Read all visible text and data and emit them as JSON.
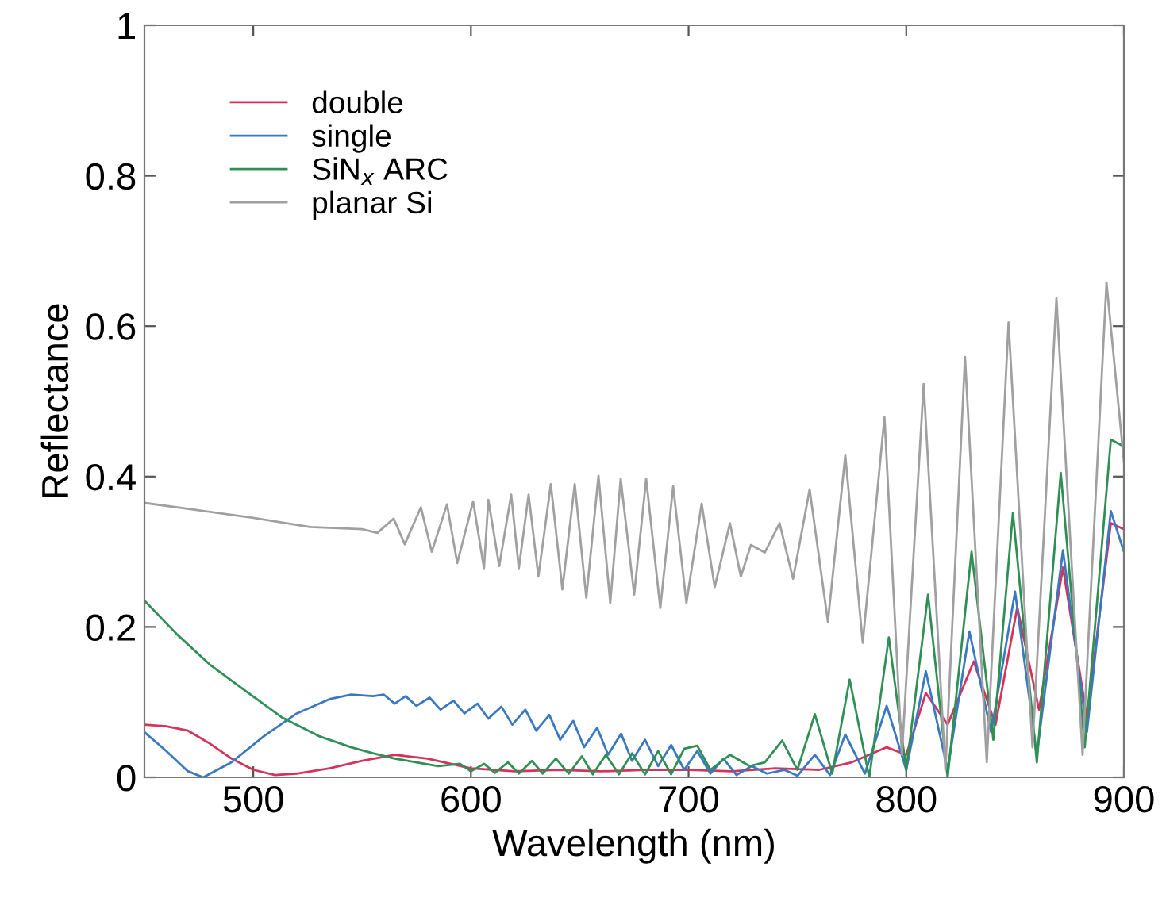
{
  "chart_data": {
    "type": "line",
    "xlabel": "Wavelength (nm)",
    "ylabel": "Reflectance",
    "xlim": [
      450,
      900
    ],
    "xticks": [
      500,
      600,
      700,
      800,
      900
    ],
    "ylim": [
      0,
      1
    ],
    "yticks": [
      0,
      0.2,
      0.4,
      0.6,
      0.8,
      1
    ],
    "grid": false,
    "legend": "top left",
    "marker": "none",
    "line_style": "solid",
    "series": [
      {
        "name": "double",
        "color": "#d6325a",
        "x": [
          450,
          460,
          470,
          480,
          490,
          500,
          510,
          520,
          535,
          550,
          565,
          580,
          600,
          620,
          640,
          660,
          680,
          700,
          720,
          740,
          760,
          775,
          791,
          800,
          809,
          819,
          831,
          841,
          851,
          861,
          872,
          883,
          894,
          900
        ],
        "values": [
          0.07,
          0.068,
          0.062,
          0.045,
          0.025,
          0.01,
          0.003,
          0.005,
          0.012,
          0.022,
          0.03,
          0.025,
          0.012,
          0.008,
          0.01,
          0.008,
          0.01,
          0.01,
          0.008,
          0.012,
          0.01,
          0.02,
          0.04,
          0.03,
          0.112,
          0.07,
          0.154,
          0.07,
          0.226,
          0.09,
          0.279,
          0.08,
          0.338,
          0.33
        ]
      },
      {
        "name": "single",
        "color": "#3a78c0",
        "x": [
          450,
          460,
          470,
          477,
          490,
          505,
          520,
          535,
          545,
          555,
          560,
          565,
          570,
          575,
          581,
          586,
          592,
          597,
          603,
          608,
          614,
          619,
          625,
          630,
          636,
          641,
          647,
          652,
          658,
          663,
          669,
          674,
          680,
          686,
          692,
          698,
          704,
          710,
          716,
          722,
          729,
          736,
          744,
          750,
          758,
          765,
          772,
          781,
          791,
          800,
          809,
          819,
          829,
          839,
          850,
          860,
          872,
          883,
          894,
          900
        ],
        "values": [
          0.06,
          0.035,
          0.008,
          0.0,
          0.02,
          0.055,
          0.085,
          0.104,
          0.11,
          0.108,
          0.11,
          0.098,
          0.108,
          0.095,
          0.106,
          0.09,
          0.102,
          0.085,
          0.098,
          0.078,
          0.094,
          0.07,
          0.09,
          0.062,
          0.083,
          0.05,
          0.075,
          0.04,
          0.066,
          0.03,
          0.058,
          0.022,
          0.05,
          0.015,
          0.043,
          0.01,
          0.035,
          0.005,
          0.025,
          0.003,
          0.015,
          0.005,
          0.01,
          0.002,
          0.03,
          0.003,
          0.057,
          0.005,
          0.095,
          0.01,
          0.141,
          0.01,
          0.194,
          0.06,
          0.247,
          0.03,
          0.302,
          0.06,
          0.354,
          0.3
        ]
      },
      {
        "name": "SiN$_{x}$ ARC",
        "color": "#2f8f55",
        "x": [
          450,
          465,
          480,
          495,
          513,
          530,
          545,
          555,
          565,
          575,
          585,
          595,
          600,
          606,
          611,
          617,
          622,
          628,
          633,
          639,
          645,
          651,
          656,
          662,
          668,
          674,
          680,
          686,
          692,
          698,
          704,
          710,
          719,
          728,
          735,
          743,
          750,
          758,
          766,
          774,
          783,
          792,
          800,
          810,
          819,
          830,
          840,
          849,
          860,
          871,
          882,
          894,
          900
        ],
        "values": [
          0.235,
          0.19,
          0.15,
          0.118,
          0.08,
          0.055,
          0.04,
          0.032,
          0.025,
          0.02,
          0.015,
          0.018,
          0.008,
          0.018,
          0.006,
          0.02,
          0.005,
          0.022,
          0.005,
          0.025,
          0.005,
          0.028,
          0.004,
          0.03,
          0.004,
          0.032,
          0.004,
          0.035,
          0.004,
          0.038,
          0.042,
          0.01,
          0.03,
          0.015,
          0.02,
          0.049,
          0.01,
          0.084,
          0.005,
          0.13,
          0.0,
          0.186,
          0.01,
          0.243,
          0.0,
          0.3,
          0.05,
          0.352,
          0.02,
          0.405,
          0.04,
          0.449,
          0.44
        ]
      },
      {
        "name": "planar Si",
        "color": "#a0a0a0",
        "x": [
          450,
          475,
          500,
          526,
          550,
          557,
          564.5,
          569.6,
          577,
          582,
          589,
          593.7,
          601,
          606,
          608,
          613,
          618.5,
          622,
          626.5,
          631,
          636.7,
          642,
          647.7,
          653,
          658.6,
          664,
          668.8,
          675,
          680.5,
          687,
          692.9,
          699,
          706,
          712,
          719,
          724,
          728.6,
          735,
          741.8,
          748,
          755.6,
          764,
          772,
          780,
          790,
          798,
          808,
          818,
          827,
          837,
          847,
          858,
          869,
          881,
          892,
          900
        ],
        "values": [
          0.365,
          0.355,
          0.345,
          0.333,
          0.33,
          0.325,
          0.344,
          0.31,
          0.359,
          0.3,
          0.363,
          0.285,
          0.367,
          0.278,
          0.369,
          0.281,
          0.376,
          0.278,
          0.376,
          0.267,
          0.39,
          0.25,
          0.39,
          0.239,
          0.401,
          0.232,
          0.397,
          0.243,
          0.397,
          0.225,
          0.387,
          0.232,
          0.364,
          0.253,
          0.338,
          0.267,
          0.309,
          0.299,
          0.338,
          0.264,
          0.383,
          0.207,
          0.428,
          0.179,
          0.479,
          0.03,
          0.523,
          0.01,
          0.559,
          0.02,
          0.605,
          0.04,
          0.637,
          0.03,
          0.658,
          0.42
        ]
      }
    ]
  }
}
